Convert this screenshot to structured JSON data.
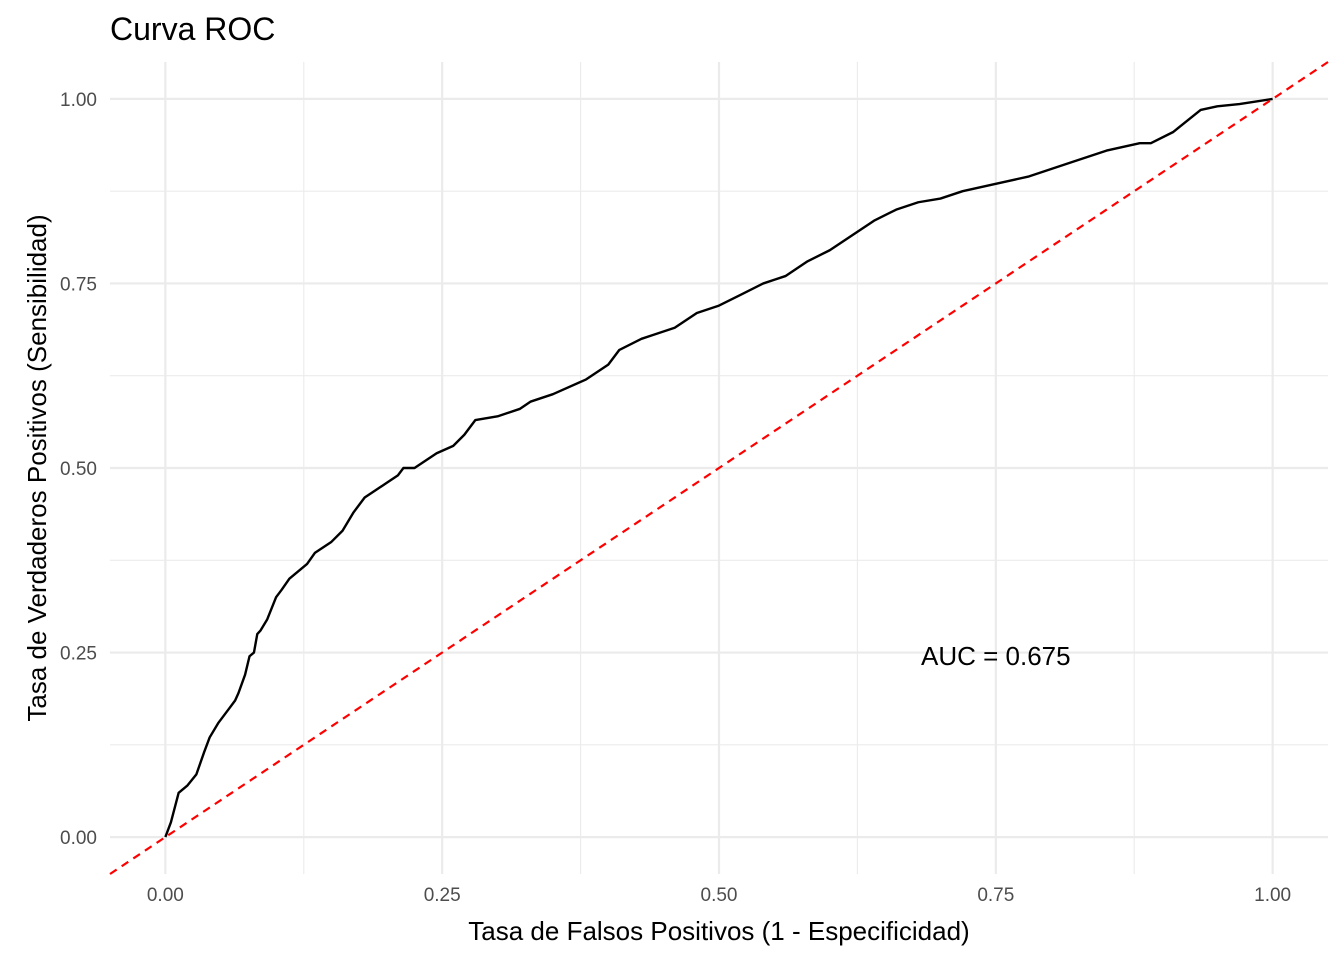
{
  "chart_data": {
    "type": "line",
    "title": "Curva ROC",
    "xlabel": "Tasa de Falsos Positivos (1 - Especificidad)",
    "ylabel": "Tasa de Verdaderos Positivos (Sensibilidad)",
    "xlim": [
      -0.05,
      1.05
    ],
    "ylim": [
      -0.05,
      1.05
    ],
    "x_ticks": [
      0,
      0.25,
      0.5,
      0.75,
      1
    ],
    "x_tick_labels": [
      "0.00",
      "0.25",
      "0.50",
      "0.75",
      "1.00"
    ],
    "y_ticks": [
      0,
      0.25,
      0.5,
      0.75,
      1
    ],
    "y_tick_labels": [
      "0.00",
      "0.25",
      "0.50",
      "0.75",
      "1.00"
    ],
    "grid": true,
    "annotation": {
      "text": "AUC = 0.675",
      "x": 0.75,
      "y": 0.245
    },
    "series": [
      {
        "color": "#000000",
        "style": "solid",
        "x": [
          0,
          0.005,
          0.012,
          0.02,
          0.028,
          0.035,
          0.04,
          0.048,
          0.058,
          0.063,
          0.066,
          0.072,
          0.076,
          0.08,
          0.083,
          0.086,
          0.092,
          0.1,
          0.105,
          0.112,
          0.12,
          0.128,
          0.135,
          0.15,
          0.16,
          0.17,
          0.18,
          0.19,
          0.2,
          0.21,
          0.215,
          0.225,
          0.235,
          0.245,
          0.26,
          0.27,
          0.28,
          0.3,
          0.32,
          0.33,
          0.35,
          0.38,
          0.4,
          0.41,
          0.43,
          0.44,
          0.46,
          0.48,
          0.5,
          0.52,
          0.54,
          0.55,
          0.56,
          0.58,
          0.6,
          0.62,
          0.64,
          0.66,
          0.68,
          0.7,
          0.72,
          0.75,
          0.78,
          0.8,
          0.82,
          0.85,
          0.88,
          0.89,
          0.91,
          0.935,
          0.95,
          0.97,
          1.0
        ],
        "y": [
          0,
          0.02,
          0.06,
          0.07,
          0.085,
          0.115,
          0.135,
          0.155,
          0.175,
          0.185,
          0.195,
          0.22,
          0.245,
          0.25,
          0.275,
          0.28,
          0.295,
          0.325,
          0.335,
          0.35,
          0.36,
          0.37,
          0.385,
          0.4,
          0.415,
          0.44,
          0.46,
          0.47,
          0.48,
          0.49,
          0.5,
          0.5,
          0.51,
          0.52,
          0.53,
          0.545,
          0.565,
          0.57,
          0.58,
          0.59,
          0.6,
          0.62,
          0.64,
          0.66,
          0.675,
          0.68,
          0.69,
          0.71,
          0.72,
          0.735,
          0.75,
          0.755,
          0.76,
          0.78,
          0.795,
          0.815,
          0.835,
          0.85,
          0.86,
          0.865,
          0.875,
          0.885,
          0.895,
          0.905,
          0.915,
          0.93,
          0.94,
          0.94,
          0.955,
          0.985,
          0.99,
          0.993,
          1.0
        ]
      },
      {
        "color": "#ff0000",
        "style": "dashed",
        "x": [
          -0.05,
          1.05
        ],
        "y": [
          -0.05,
          1.05
        ]
      }
    ]
  }
}
